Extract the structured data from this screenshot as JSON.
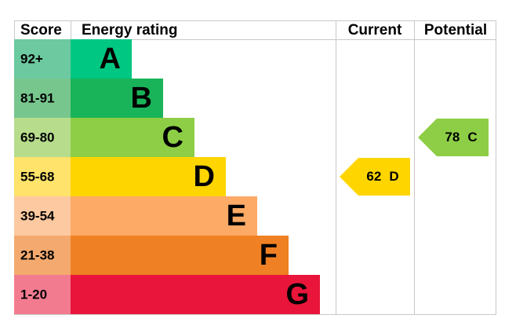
{
  "header": {
    "score": "Score",
    "rating": "Energy rating",
    "current": "Current",
    "potential": "Potential"
  },
  "bands": [
    {
      "score": "92+",
      "letter": "A",
      "color": "#00c781",
      "light": "#6cc9a0"
    },
    {
      "score": "81-91",
      "letter": "B",
      "color": "#19b459",
      "light": "#77c68e"
    },
    {
      "score": "69-80",
      "letter": "C",
      "color": "#8dce46",
      "light": "#b6dc8c"
    },
    {
      "score": "55-68",
      "letter": "D",
      "color": "#ffd500",
      "light": "#ffe36b"
    },
    {
      "score": "39-54",
      "letter": "E",
      "color": "#fcaa65",
      "light": "#fdc9a0"
    },
    {
      "score": "21-38",
      "letter": "F",
      "color": "#ef8023",
      "light": "#f4a96e"
    },
    {
      "score": "1-20",
      "letter": "G",
      "color": "#e9153b",
      "light": "#f27b90"
    }
  ],
  "current": {
    "value": 62,
    "letter": "D"
  },
  "potential": {
    "value": 78,
    "letter": "C"
  }
}
